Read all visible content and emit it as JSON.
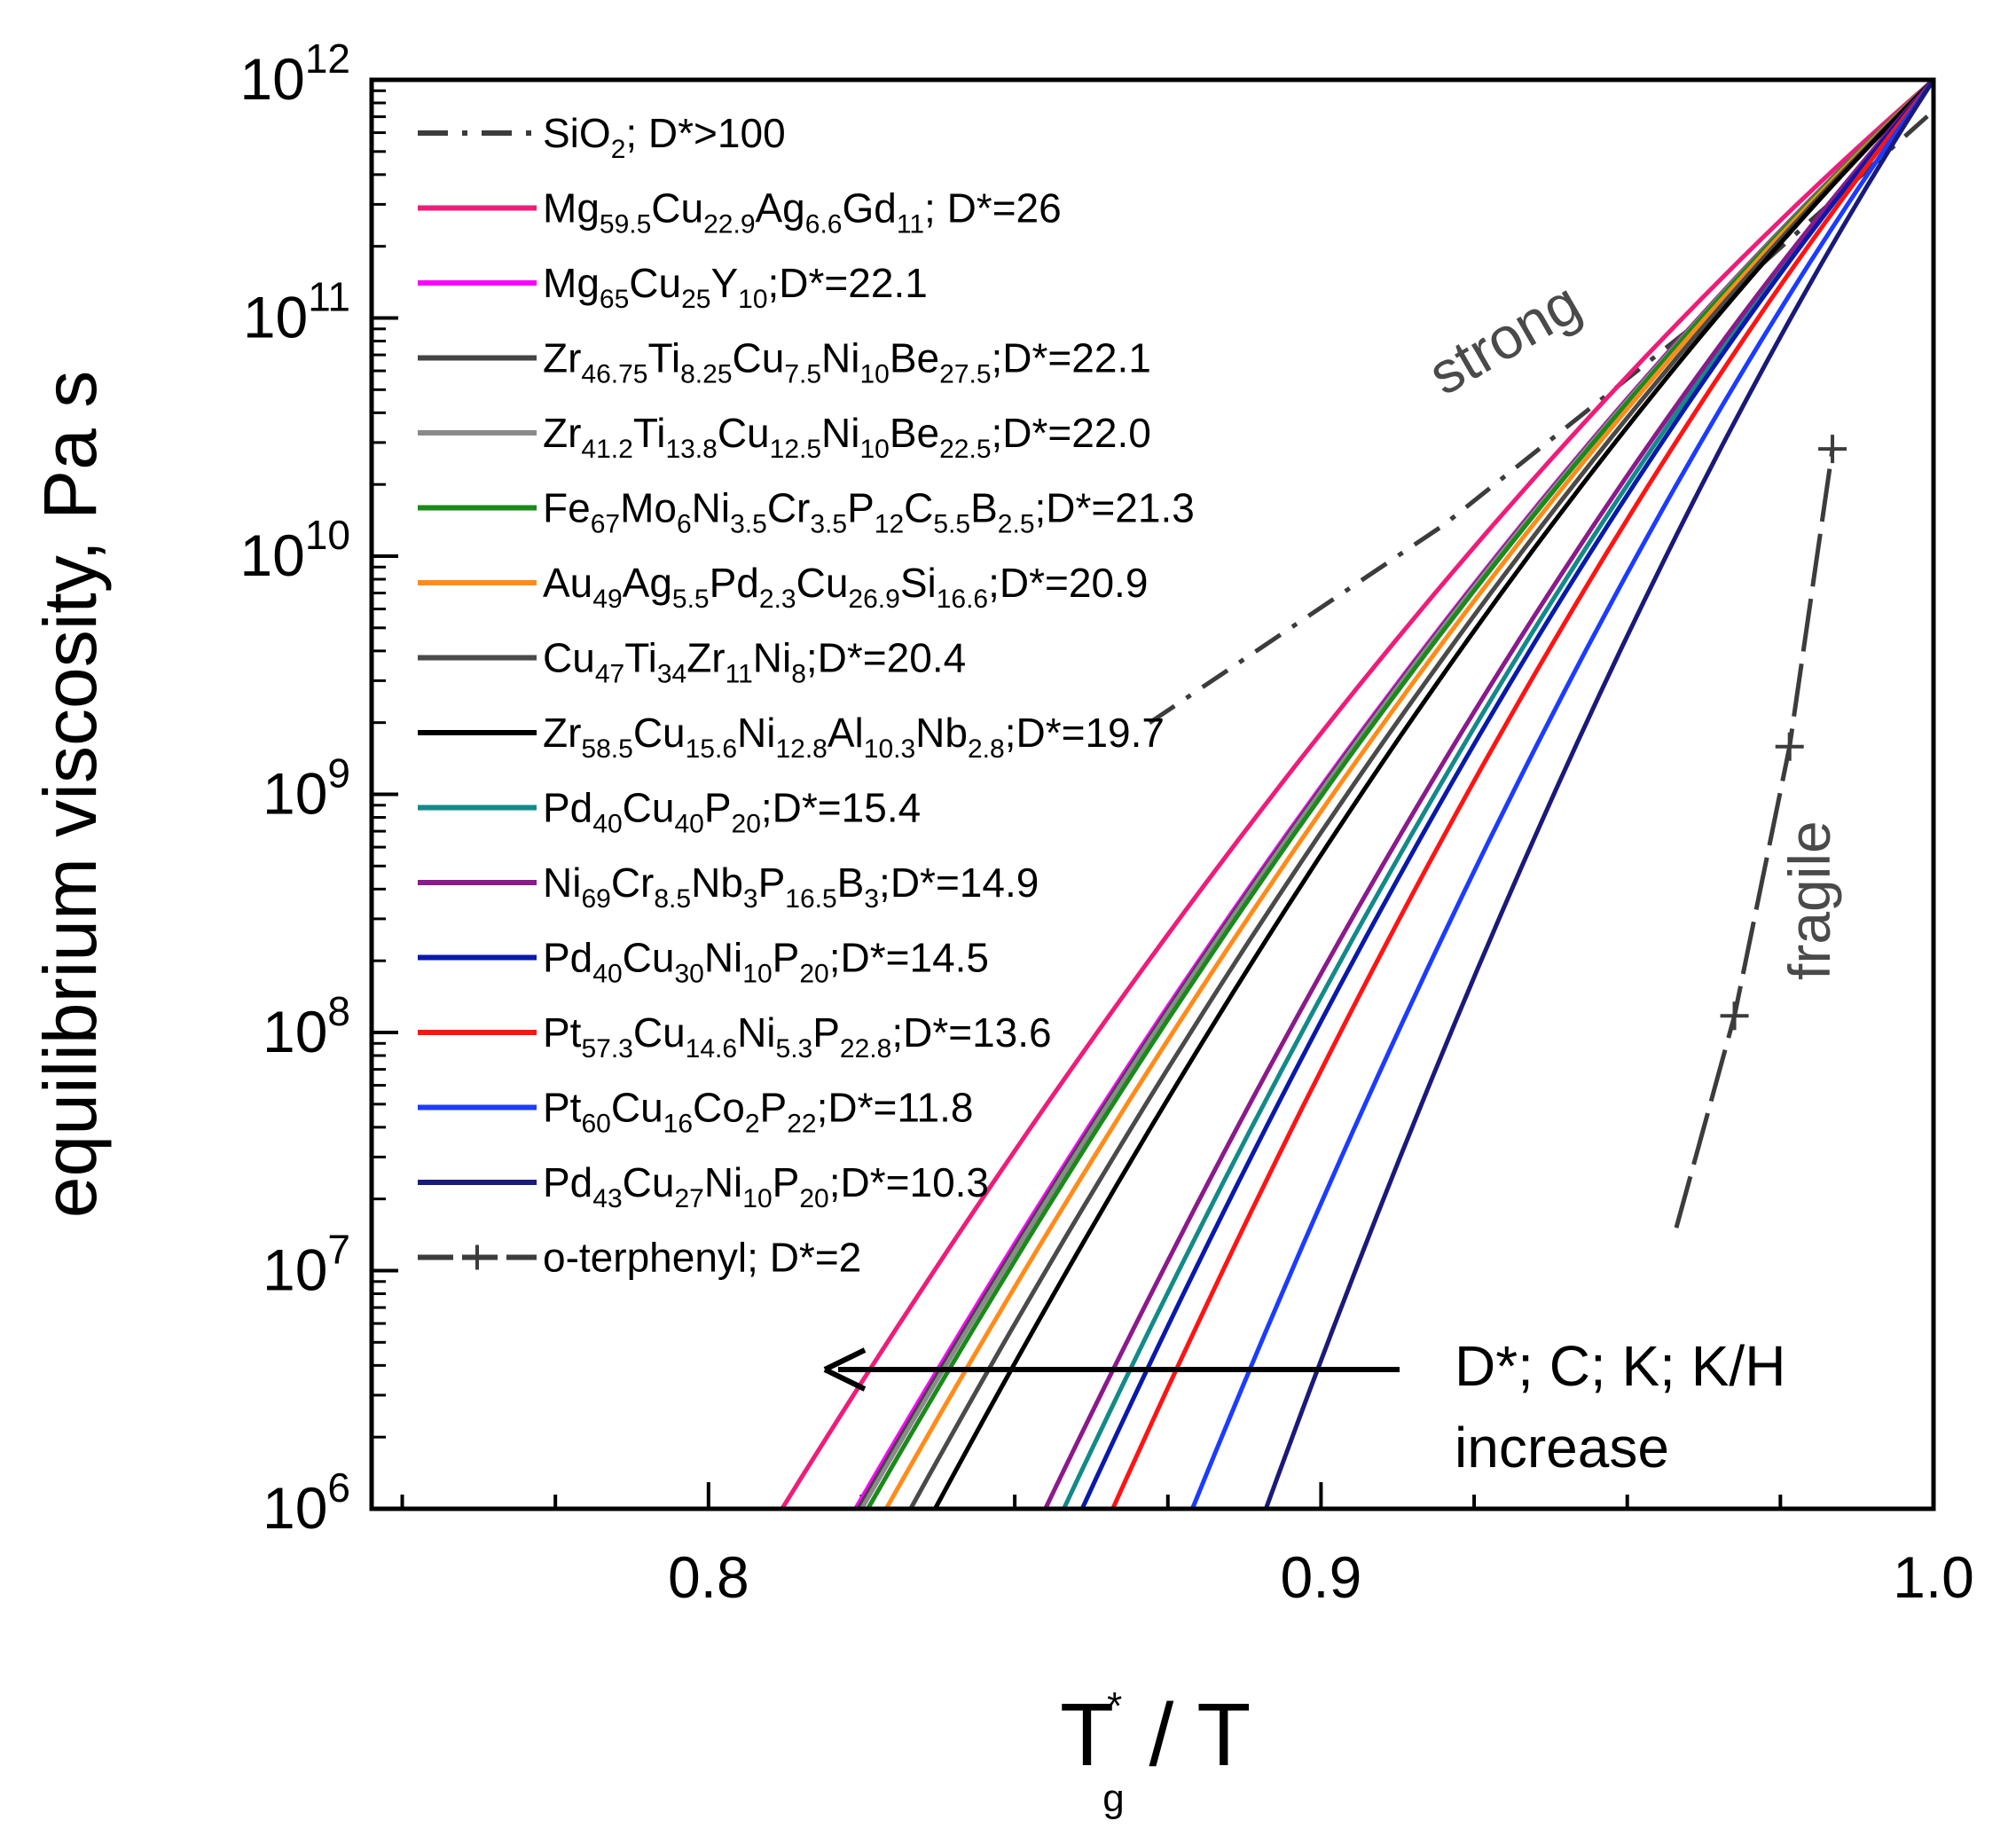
{
  "chart_data": {
    "type": "line",
    "title": "",
    "xlabel": {
      "main": "T",
      "sup": "*",
      "sub": "g",
      "rest": " / T"
    },
    "ylabel": "equilibrium viscosity, Pa s",
    "xlim": [
      0.745,
      1.0
    ],
    "ylim_log10": [
      6,
      12
    ],
    "x_ticks": [
      {
        "value": 0.8,
        "label": "0.8"
      },
      {
        "value": 0.9,
        "label": "0.9"
      },
      {
        "value": 1.0,
        "label": "1.0"
      }
    ],
    "y_ticks": [
      {
        "value": 6,
        "base": "10",
        "exp": "6"
      },
      {
        "value": 7,
        "base": "10",
        "exp": "7"
      },
      {
        "value": 8,
        "base": "10",
        "exp": "8"
      },
      {
        "value": 9,
        "base": "10",
        "exp": "9"
      },
      {
        "value": 10,
        "base": "10",
        "exp": "10"
      },
      {
        "value": 11,
        "base": "10",
        "exp": "11"
      },
      {
        "value": 12,
        "base": "10",
        "exp": "12"
      }
    ],
    "series": [
      {
        "name": "SiO2; D*>100",
        "color": "#3c3c3c",
        "style": "dashdot",
        "legend": [
          [
            "SiO",
            ""
          ],
          [
            "2",
            "sub"
          ],
          [
            "; D*>100",
            ""
          ]
        ],
        "points": [
          [
            0.872,
            9.3
          ],
          [
            0.92,
            10.13
          ],
          [
            0.96,
            10.95
          ],
          [
            1.0,
            11.87
          ]
        ]
      },
      {
        "name": "Mg59.5Cu22.9Ag6.6Gd11; D*=26",
        "color": "#ee1d79",
        "style": "solid",
        "start": 0.812,
        "curv": 0.3,
        "legend": [
          [
            "Mg",
            ""
          ],
          [
            "59.5",
            "sub"
          ],
          [
            "Cu",
            ""
          ],
          [
            "22.9",
            "sub"
          ],
          [
            "Ag",
            ""
          ],
          [
            "6.6",
            "sub"
          ],
          [
            "Gd",
            ""
          ],
          [
            "11",
            "sub"
          ],
          [
            "; D*=26",
            ""
          ]
        ]
      },
      {
        "name": "Mg65Cu25Y10; D*=22.1",
        "color": "#ff00ff",
        "style": "solid",
        "start": 0.824,
        "curv": 0.3,
        "legend": [
          [
            "Mg",
            ""
          ],
          [
            "65",
            "sub"
          ],
          [
            "Cu",
            ""
          ],
          [
            "25",
            "sub"
          ],
          [
            "Y",
            ""
          ],
          [
            "10",
            "sub"
          ],
          [
            ";D*=22.1",
            ""
          ]
        ]
      },
      {
        "name": "Zr46.75Ti8.25Cu7.5Ni10Be27.5; D*=22.1",
        "color": "#444444",
        "style": "solid",
        "start": 0.8245,
        "curv": 0.3,
        "legend": [
          [
            "Zr",
            ""
          ],
          [
            "46.75",
            "sub"
          ],
          [
            "Ti",
            ""
          ],
          [
            "8.25",
            "sub"
          ],
          [
            "Cu",
            ""
          ],
          [
            "7.5",
            "sub"
          ],
          [
            "Ni",
            ""
          ],
          [
            "10",
            "sub"
          ],
          [
            "Be",
            ""
          ],
          [
            "27.5",
            "sub"
          ],
          [
            ";D*=22.1",
            ""
          ]
        ]
      },
      {
        "name": "Zr41.2Ti13.8Cu12.5Ni10Be22.5; D*=22.0",
        "color": "#8a8a8a",
        "style": "solid",
        "start": 0.825,
        "curv": 0.3,
        "legend": [
          [
            "Zr",
            ""
          ],
          [
            "41.2",
            "sub"
          ],
          [
            "Ti",
            ""
          ],
          [
            "13.8",
            "sub"
          ],
          [
            "Cu",
            ""
          ],
          [
            "12.5",
            "sub"
          ],
          [
            "Ni",
            ""
          ],
          [
            "10",
            "sub"
          ],
          [
            "Be",
            ""
          ],
          [
            "22.5",
            "sub"
          ],
          [
            ";D*=22.0",
            ""
          ]
        ]
      },
      {
        "name": "Fe67Mo6Ni3.5Cr3.5P12C5.5B2.5; D*=21.3",
        "color": "#1a8a1a",
        "style": "solid",
        "start": 0.826,
        "curv": 0.3,
        "legend": [
          [
            "Fe",
            ""
          ],
          [
            "67",
            "sub"
          ],
          [
            "Mo",
            ""
          ],
          [
            "6",
            "sub"
          ],
          [
            "Ni",
            ""
          ],
          [
            "3.5",
            "sub"
          ],
          [
            "Cr",
            ""
          ],
          [
            "3.5",
            "sub"
          ],
          [
            "P",
            ""
          ],
          [
            "12",
            "sub"
          ],
          [
            "C",
            ""
          ],
          [
            "5.5",
            "sub"
          ],
          [
            "B",
            ""
          ],
          [
            "2.5",
            "sub"
          ],
          [
            ";D*=21.3",
            ""
          ]
        ]
      },
      {
        "name": "Au49Ag5.5Pd2.3Cu26.9Si16.6; D*=20.9",
        "color": "#ff8c1a",
        "style": "solid",
        "start": 0.829,
        "curv": 0.3,
        "legend": [
          [
            "Au",
            ""
          ],
          [
            "49",
            "sub"
          ],
          [
            "Ag",
            ""
          ],
          [
            "5.5",
            "sub"
          ],
          [
            "Pd",
            ""
          ],
          [
            "2.3",
            "sub"
          ],
          [
            "Cu",
            ""
          ],
          [
            "26.9",
            "sub"
          ],
          [
            "Si",
            ""
          ],
          [
            "16.6",
            "sub"
          ],
          [
            ";D*=20.9",
            ""
          ]
        ]
      },
      {
        "name": "Cu47Ti34Zr11Ni8; D*=20.4",
        "color": "#4a4a4a",
        "style": "solid",
        "start": 0.833,
        "curv": 0.3,
        "legend": [
          [
            "Cu",
            ""
          ],
          [
            "47",
            "sub"
          ],
          [
            "Ti",
            ""
          ],
          [
            "34",
            "sub"
          ],
          [
            "Zr",
            ""
          ],
          [
            "11",
            "sub"
          ],
          [
            "Ni",
            ""
          ],
          [
            "8",
            "sub"
          ],
          [
            ";D*=20.4",
            ""
          ]
        ]
      },
      {
        "name": "Zr58.5Cu15.6Ni12.8Al10.3Nb2.8; D*=19.7",
        "color": "#000000",
        "style": "solid",
        "start": 0.837,
        "curv": 0.3,
        "legend": [
          [
            "Zr",
            ""
          ],
          [
            "58.5",
            "sub"
          ],
          [
            "Cu",
            ""
          ],
          [
            "15.6",
            "sub"
          ],
          [
            "Ni",
            ""
          ],
          [
            "12.8",
            "sub"
          ],
          [
            "Al",
            ""
          ],
          [
            "10.3",
            "sub"
          ],
          [
            "Nb",
            ""
          ],
          [
            "2.8",
            "sub"
          ],
          [
            ";D*=19.7",
            ""
          ]
        ]
      },
      {
        "name": "Pd40Cu40P20; D*=15.4",
        "color": "#138a8a",
        "style": "solid",
        "start": 0.858,
        "curv": 0.3,
        "legend": [
          [
            "Pd",
            ""
          ],
          [
            "40",
            "sub"
          ],
          [
            "Cu",
            ""
          ],
          [
            "40",
            "sub"
          ],
          [
            "P",
            ""
          ],
          [
            "20",
            "sub"
          ],
          [
            ";D*=15.4",
            ""
          ]
        ]
      },
      {
        "name": "Ni69Cr8.5Nb3P16.5B3; D*=14.9",
        "color": "#8b1a8b",
        "style": "solid",
        "start": 0.855,
        "curv": 0.3,
        "legend": [
          [
            "Ni",
            ""
          ],
          [
            "69",
            "sub"
          ],
          [
            "Cr",
            ""
          ],
          [
            "8.5",
            "sub"
          ],
          [
            "Nb",
            ""
          ],
          [
            "3",
            "sub"
          ],
          [
            "P",
            ""
          ],
          [
            "16.5",
            "sub"
          ],
          [
            "B",
            ""
          ],
          [
            "3",
            "sub"
          ],
          [
            ";D*=14.9",
            ""
          ]
        ]
      },
      {
        "name": "Pd40Cu30Ni10P20; D*=14.5",
        "color": "#0a1aa8",
        "style": "solid",
        "start": 0.861,
        "curv": 0.3,
        "legend": [
          [
            "Pd",
            ""
          ],
          [
            "40",
            "sub"
          ],
          [
            "Cu",
            ""
          ],
          [
            "30",
            "sub"
          ],
          [
            "Ni",
            ""
          ],
          [
            "10",
            "sub"
          ],
          [
            "P",
            ""
          ],
          [
            "20",
            "sub"
          ],
          [
            ";D*=14.5",
            ""
          ]
        ]
      },
      {
        "name": "Pt57.3Cu14.6Ni5.3P22.8; D*=13.6",
        "color": "#ff1414",
        "style": "solid",
        "start": 0.866,
        "curv": 0.28,
        "legend": [
          [
            "Pt",
            ""
          ],
          [
            "57.3",
            "sub"
          ],
          [
            "Cu",
            ""
          ],
          [
            "14.6",
            "sub"
          ],
          [
            "Ni",
            ""
          ],
          [
            "5.3",
            "sub"
          ],
          [
            "P",
            ""
          ],
          [
            "22.8",
            "sub"
          ],
          [
            ";D*=13.6",
            ""
          ]
        ]
      },
      {
        "name": "Pt60Cu16Co2P22; D*=11.8",
        "color": "#1c3cff",
        "style": "solid",
        "start": 0.879,
        "curv": 0.28,
        "legend": [
          [
            "Pt",
            ""
          ],
          [
            "60",
            "sub"
          ],
          [
            "Cu",
            ""
          ],
          [
            "16",
            "sub"
          ],
          [
            "Co",
            ""
          ],
          [
            "2",
            "sub"
          ],
          [
            "P",
            ""
          ],
          [
            "22",
            "sub"
          ],
          [
            ";D*=11.8",
            ""
          ]
        ]
      },
      {
        "name": "Pd43Cu27Ni10P20; D*=10.3",
        "color": "#1a1a7a",
        "style": "solid",
        "start": 0.891,
        "curv": 0.28,
        "legend": [
          [
            "Pd",
            ""
          ],
          [
            "43",
            "sub"
          ],
          [
            "Cu",
            ""
          ],
          [
            "27",
            "sub"
          ],
          [
            "Ni",
            ""
          ],
          [
            "10",
            "sub"
          ],
          [
            "P",
            ""
          ],
          [
            "20",
            "sub"
          ],
          [
            ";D*=10.3",
            ""
          ]
        ]
      },
      {
        "name": "o-terphenyl; D*=2",
        "color": "#3c3c3c",
        "style": "dashplus",
        "legend": [
          [
            "o-terphenyl; D*=2",
            ""
          ]
        ],
        "points": [
          [
            0.958,
            7.18
          ],
          [
            0.9675,
            8.07
          ],
          [
            0.9765,
            9.2
          ],
          [
            0.9835,
            10.45
          ]
        ],
        "markers": [
          [
            0.9675,
            8.07
          ],
          [
            0.9765,
            9.2
          ],
          [
            0.9835,
            10.45
          ]
        ]
      }
    ],
    "annotations": {
      "strong": "strong",
      "fragile": "fragile",
      "arrow_text_line1": "D*; C; K; K/H",
      "arrow_text_line2": "increase"
    }
  }
}
